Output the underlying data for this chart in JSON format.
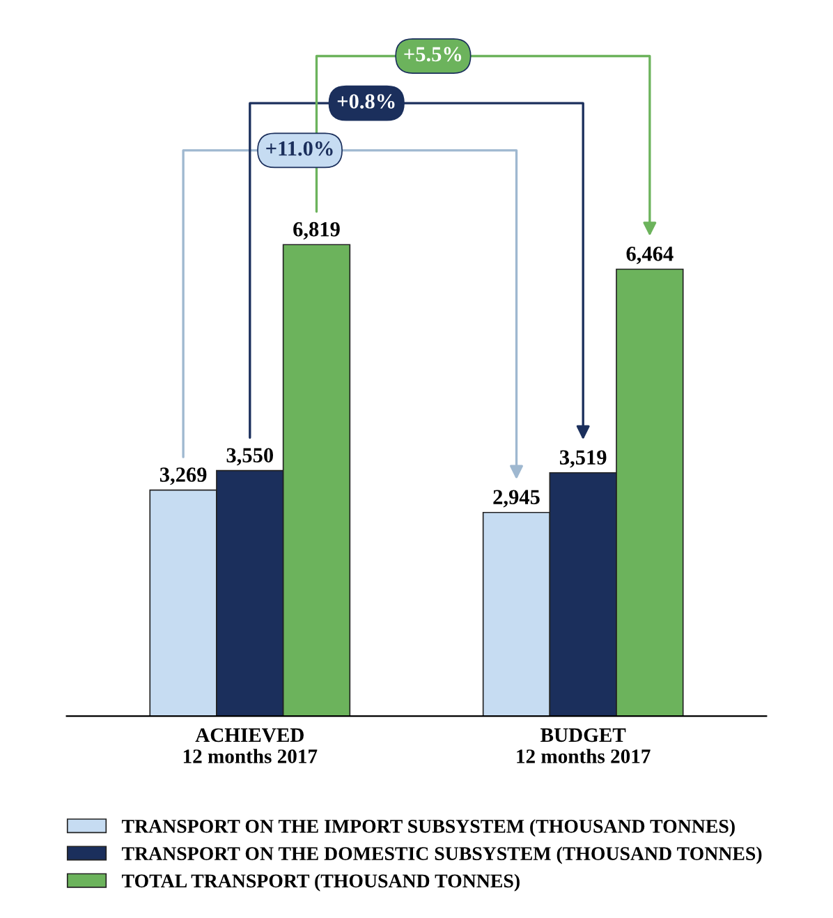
{
  "chart_data": {
    "type": "bar",
    "categories": [
      "ACHIEVED\n12 months 2017",
      "BUDGET\n12 months 2017"
    ],
    "series": [
      {
        "name": "TRANSPORT ON THE IMPORT SUBSYSTEM (THOUSAND TONNES)",
        "color": "#c6dcf2",
        "values": [
          3269,
          2945
        ],
        "value_labels": [
          "3,269",
          "2,945"
        ]
      },
      {
        "name": "TRANSPORT ON THE DOMESTIC SUBSYSTEM (THOUSAND TONNES)",
        "color": "#1b2f5c",
        "values": [
          3550,
          3519
        ],
        "value_labels": [
          "3,550",
          "3,519"
        ]
      },
      {
        "name": "TOTAL TRANSPORT (THOUSAND TONNES)",
        "color": "#6cb35c",
        "values": [
          6819,
          6464
        ],
        "value_labels": [
          "6,819",
          "6,464"
        ]
      }
    ],
    "annotations": [
      "+11.0%",
      "+0.8%",
      "+5.5%"
    ],
    "legend": "bottom",
    "grid": false
  }
}
